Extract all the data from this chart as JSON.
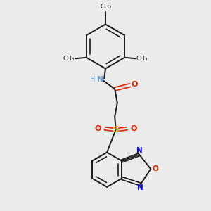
{
  "bg_color": "#ebebeb",
  "bond_color": "#1a1a1a",
  "N_color": "#6699cc",
  "O_color": "#dd2200",
  "S_color": "#bbbb00",
  "figsize": [
    3.0,
    3.0
  ],
  "dpi": 100,
  "xlim": [
    0,
    10
  ],
  "ylim": [
    0,
    10
  ]
}
